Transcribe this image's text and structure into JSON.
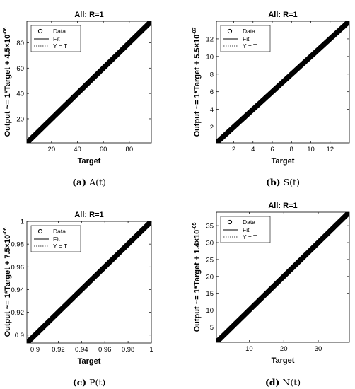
{
  "chart_data": [
    {
      "type": "scatter",
      "title": "All: R=1",
      "xlabel": "Target",
      "ylabel_main": "Output ~= 1*Target + 4.5×10",
      "ylabel_exp": "-06",
      "caption_label": "(a)",
      "caption_text": "A(t)",
      "xlim": [
        1,
        97
      ],
      "ylim": [
        1,
        97
      ],
      "xticks": [
        20,
        40,
        60,
        80
      ],
      "yticks": [
        20,
        40,
        60,
        80
      ],
      "tick_labels_x": [
        "20",
        "40",
        "60",
        "80"
      ],
      "tick_labels_y": [
        "20",
        "40",
        "60",
        "80"
      ],
      "points": {
        "x_range": [
          1.5,
          96
        ],
        "slope": 1,
        "intercept": 4.5e-06
      },
      "legend": [
        "Data",
        "Fit",
        "Y = T"
      ],
      "legend_position": "top-left",
      "grid": false
    },
    {
      "type": "scatter",
      "title": "All: R=1",
      "xlabel": "Target",
      "ylabel_main": "Output ~= 1*Target + 5.5×10",
      "ylabel_exp": "-07",
      "caption_label": "(b)",
      "caption_text": "S(t)",
      "xlim": [
        0.2,
        14
      ],
      "ylim": [
        0.2,
        14
      ],
      "xticks": [
        2,
        4,
        6,
        8,
        10,
        12
      ],
      "yticks": [
        2,
        4,
        6,
        8,
        10,
        12
      ],
      "tick_labels_x": [
        "2",
        "4",
        "6",
        "8",
        "10",
        "12"
      ],
      "tick_labels_y": [
        "2",
        "4",
        "6",
        "8",
        "10",
        "12"
      ],
      "points": {
        "x_range": [
          0.3,
          13.8
        ],
        "slope": 1,
        "intercept": 5.5e-07
      },
      "legend": [
        "Data",
        "Fit",
        "Y = T"
      ],
      "legend_position": "top-left",
      "grid": false
    },
    {
      "type": "scatter",
      "title": "All: R=1",
      "xlabel": "Target",
      "ylabel_main": "Output ~= 1*Target + 7.5×10",
      "ylabel_exp": "-06",
      "caption_label": "(c)",
      "caption_text": "P(t)",
      "xlim": [
        0.893,
        1.0
      ],
      "ylim": [
        0.893,
        1.0
      ],
      "xticks": [
        0.9,
        0.92,
        0.94,
        0.96,
        0.98,
        1.0
      ],
      "yticks": [
        0.9,
        0.92,
        0.94,
        0.96,
        0.98,
        1.0
      ],
      "tick_labels_x": [
        "0.9",
        "0.92",
        "0.94",
        "0.96",
        "0.98",
        "1"
      ],
      "tick_labels_y": [
        "0.9",
        "0.92",
        "0.94",
        "0.96",
        "0.98",
        "1"
      ],
      "points": {
        "x_range": [
          0.895,
          0.9995
        ],
        "slope": 1,
        "intercept": 7.5e-06
      },
      "legend": [
        "Data",
        "Fit",
        "Y = T"
      ],
      "legend_position": "top-left",
      "grid": false
    },
    {
      "type": "scatter",
      "title": "All: R=1",
      "xlabel": "Target",
      "ylabel_main": "Output ~= 1*Target + 1.4×10",
      "ylabel_exp": "-05",
      "caption_label": "(d)",
      "caption_text": "N(t)",
      "xlim": [
        0.5,
        39
      ],
      "ylim": [
        0.5,
        39
      ],
      "xticks": [
        10,
        20,
        30
      ],
      "yticks": [
        5,
        10,
        15,
        20,
        25,
        30,
        35
      ],
      "tick_labels_x": [
        "10",
        "20",
        "30"
      ],
      "tick_labels_y": [
        "5",
        "10",
        "15",
        "20",
        "25",
        "30",
        "35"
      ],
      "points": {
        "x_range": [
          0.8,
          38.5
        ],
        "slope": 1,
        "intercept": 1.4e-05
      },
      "legend": [
        "Data",
        "Fit",
        "Y = T"
      ],
      "legend_position": "top-left",
      "grid": false
    }
  ],
  "colors": {
    "points": "#000000",
    "fit": "#555555",
    "yt": "#000000",
    "axes": "#000000"
  }
}
